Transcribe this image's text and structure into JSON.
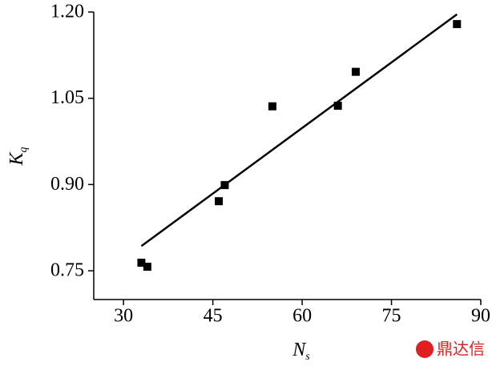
{
  "chart_data": {
    "type": "scatter",
    "x_label": {
      "main": "N",
      "sub": "s"
    },
    "y_label": {
      "main": "K",
      "sub": "q"
    },
    "x": [
      33,
      34,
      46,
      47,
      55,
      66,
      69,
      86
    ],
    "values": [
      0.764,
      0.757,
      0.871,
      0.899,
      1.036,
      1.037,
      1.096,
      1.179
    ],
    "color": "#000000",
    "fit": {
      "x": [
        33,
        86
      ],
      "values": [
        0.793,
        1.196
      ]
    },
    "xlim": [
      25,
      90
    ],
    "xticks": [
      30,
      45,
      60,
      75,
      90
    ],
    "ylim": [
      0.7,
      1.2
    ],
    "yticks": [
      {
        "value": 0.75,
        "label": "0.75"
      },
      {
        "value": 0.9,
        "label": "0.90"
      },
      {
        "value": 1.05,
        "label": "1.05"
      },
      {
        "value": 1.2,
        "label": "1.20"
      }
    ],
    "watermark": "鼎达信"
  }
}
